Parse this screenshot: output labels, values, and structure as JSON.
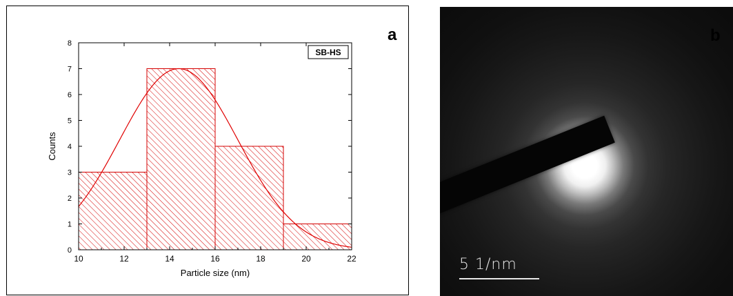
{
  "panel_a": {
    "letter": "a"
  },
  "panel_b": {
    "letter": "b",
    "scale_bar_label": "5 1/nm"
  },
  "chart_data": {
    "type": "bar",
    "style": "histogram",
    "title": "",
    "legend_label": "SB-HS",
    "legend_position": "top-right",
    "xlabel": "Particle size (nm)",
    "ylabel": "Counts",
    "xlim": [
      10,
      22
    ],
    "ylim": [
      0,
      8
    ],
    "xticks": [
      10,
      12,
      14,
      16,
      18,
      20,
      22
    ],
    "yticks": [
      0,
      1,
      2,
      3,
      4,
      5,
      6,
      7,
      8
    ],
    "bins": [
      {
        "start": 10,
        "end": 13,
        "count": 3
      },
      {
        "start": 13,
        "end": 16,
        "count": 7
      },
      {
        "start": 16,
        "end": 19,
        "count": 4
      },
      {
        "start": 19,
        "end": 22,
        "count": 1
      }
    ],
    "fit_curve": {
      "type": "gaussian",
      "center": 14.4,
      "amplitude": 7.0,
      "sigma": 2.6
    },
    "colors": {
      "bars": "#d40000",
      "fit": "#e00000",
      "axes": "#000000"
    }
  }
}
